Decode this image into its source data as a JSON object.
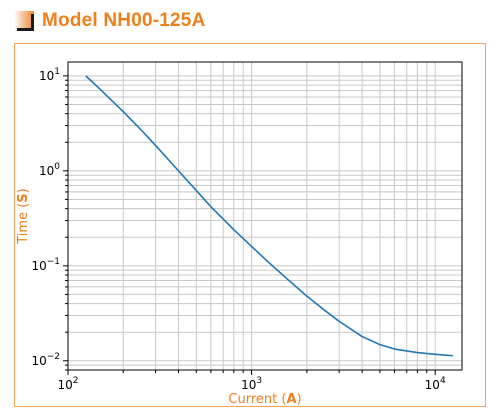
{
  "header": {
    "title": "Model NH00-125A",
    "accent_color": "#ef7f1a",
    "icon": "orange-gradient-square-icon"
  },
  "chart_data": {
    "type": "line",
    "scale": {
      "x": "log",
      "y": "log"
    },
    "grid": true,
    "xlim": [
      100,
      14000
    ],
    "ylim": [
      0.008,
      14
    ],
    "xlabel": {
      "text": "Current (",
      "unit": "A",
      "close": ")"
    },
    "ylabel": {
      "text": "Time (",
      "unit": "S",
      "close": ")"
    },
    "x_ticks": [
      {
        "value": 100,
        "base": "10",
        "exp": "2"
      },
      {
        "value": 1000,
        "base": "10",
        "exp": "3"
      },
      {
        "value": 10000,
        "base": "10",
        "exp": "4"
      }
    ],
    "y_ticks": [
      {
        "value": 10,
        "base": "10",
        "exp": "1"
      },
      {
        "value": 1,
        "base": "10",
        "exp": "0"
      },
      {
        "value": 0.1,
        "base": "10",
        "exp": "−1"
      },
      {
        "value": 0.01,
        "base": "10",
        "exp": "−2"
      }
    ],
    "series": [
      {
        "color": "#1f77b4",
        "x": [
          125,
          150,
          200,
          250,
          300,
          400,
          500,
          600,
          800,
          1000,
          1200,
          1500,
          2000,
          2500,
          3000,
          4000,
          5000,
          6000,
          8000,
          10000,
          12500
        ],
        "y": [
          10,
          7.2,
          4.2,
          2.7,
          1.85,
          1.0,
          0.62,
          0.42,
          0.24,
          0.16,
          0.115,
          0.078,
          0.048,
          0.034,
          0.026,
          0.018,
          0.0148,
          0.0133,
          0.0122,
          0.0117,
          0.0113
        ]
      }
    ]
  }
}
